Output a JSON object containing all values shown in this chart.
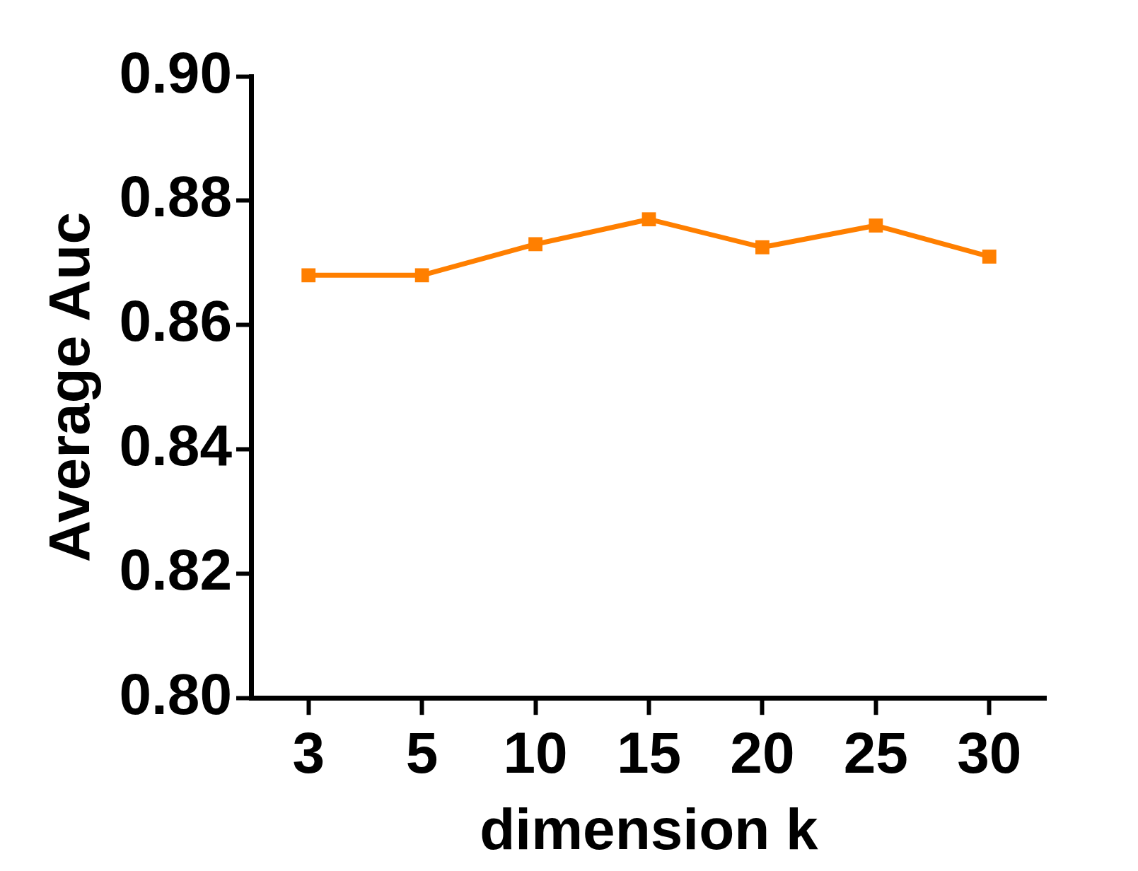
{
  "chart_data": {
    "type": "line",
    "xlabel": "dimension k",
    "ylabel": "Average Auc",
    "categories": [
      "3",
      "5",
      "10",
      "15",
      "20",
      "25",
      "30"
    ],
    "series": [
      {
        "color": "#ff7f00",
        "values": [
          0.868,
          0.868,
          0.873,
          0.877,
          0.8725,
          0.876,
          0.871
        ]
      }
    ],
    "ylim": [
      0.8,
      0.9
    ],
    "yticks": [
      {
        "value": 0.8,
        "label": "0.80"
      },
      {
        "value": 0.82,
        "label": "0.82"
      },
      {
        "value": 0.84,
        "label": "0.84"
      },
      {
        "value": 0.86,
        "label": "0.86"
      },
      {
        "value": 0.88,
        "label": "0.88"
      },
      {
        "value": 0.9,
        "label": "0.90"
      }
    ],
    "grid": false,
    "legend": false,
    "marker": "square",
    "line_style": "solid"
  }
}
